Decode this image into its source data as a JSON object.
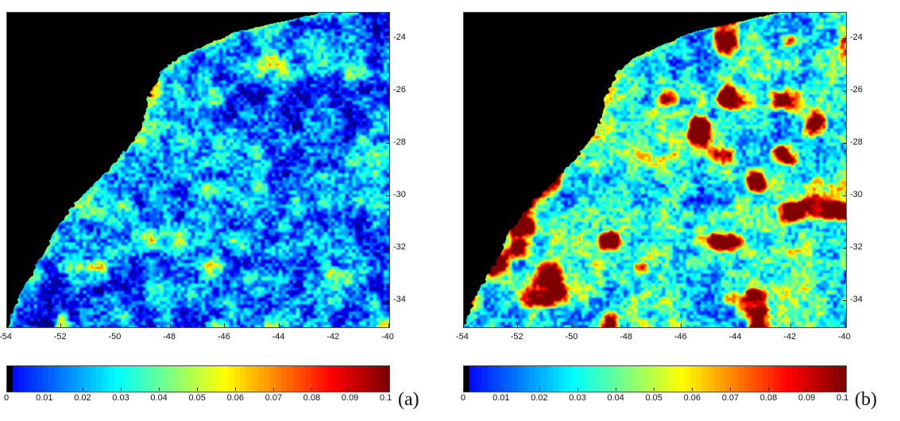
{
  "panels": [
    {
      "label": "(a)",
      "lon_ticks": [
        "-54",
        "-52",
        "-50",
        "-48",
        "-46",
        "-44",
        "-42",
        "-40"
      ],
      "lat_ticks": [
        "-24",
        "-26",
        "-28",
        "-30",
        "-32",
        "-34"
      ],
      "colorbar_ticks": [
        "0",
        "0.01",
        "0.02",
        "0.03",
        "0.04",
        "0.05",
        "0.06",
        "0.07",
        "0.08",
        "0.09",
        "0.1"
      ],
      "value_level": 0.025,
      "hot_strength": 0.25
    },
    {
      "label": "(b)",
      "lon_ticks": [
        "-54",
        "-52",
        "-50",
        "-48",
        "-46",
        "-44",
        "-42",
        "-40"
      ],
      "lat_ticks": [
        "-24",
        "-26",
        "-28",
        "-30",
        "-32",
        "-34"
      ],
      "colorbar_ticks": [
        "0",
        "0.01",
        "0.02",
        "0.03",
        "0.04",
        "0.05",
        "0.06",
        "0.07",
        "0.08",
        "0.09",
        "0.1"
      ],
      "value_level": 0.04,
      "hot_strength": 0.9
    }
  ],
  "map_extent": {
    "lon_min": -54,
    "lon_max": -40,
    "lat_min": -35,
    "lat_max": -23
  },
  "colorbar_range": [
    0,
    0.1
  ],
  "colormap": "jet",
  "land_color": "#000000"
}
